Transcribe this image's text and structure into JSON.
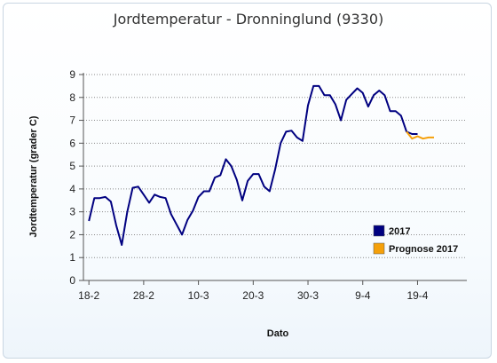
{
  "chart_data": {
    "type": "line",
    "title": "Jordtemperatur - Dronninglund (9330)",
    "xlabel": "Dato",
    "ylabel": "Jordtemperatur (grader C)",
    "ylim": [
      0,
      9
    ],
    "yticks": [
      "0",
      "1",
      "2",
      "3",
      "4",
      "5",
      "6",
      "7",
      "8",
      "9"
    ],
    "xticks": [
      "18-2",
      "28-2",
      "10-3",
      "20-3",
      "30-3",
      "9-4",
      "19-4"
    ],
    "grid": "horizontal dotted",
    "legend_position": "bottom-right",
    "series": [
      {
        "name": "2017",
        "color": "#000080",
        "x": [
          0,
          1,
          2,
          3,
          4,
          5,
          6,
          7,
          8,
          9,
          10,
          11,
          12,
          13,
          14,
          15,
          16,
          17,
          18,
          19,
          20,
          21,
          22,
          23,
          24,
          25,
          26,
          27,
          28,
          29,
          30,
          31,
          32,
          33,
          34,
          35,
          36,
          37,
          38,
          39,
          40,
          41,
          42,
          43,
          44,
          45,
          46,
          47,
          48,
          49,
          50,
          51,
          52,
          53,
          54,
          55,
          56,
          57,
          58,
          59,
          60
        ],
        "values": [
          2.6,
          3.6,
          3.6,
          3.65,
          3.45,
          2.4,
          1.55,
          3.0,
          4.05,
          4.1,
          3.75,
          3.4,
          3.75,
          3.65,
          3.6,
          2.9,
          2.45,
          2.0,
          2.65,
          3.05,
          3.65,
          3.9,
          3.9,
          4.5,
          4.6,
          5.3,
          5.0,
          4.4,
          3.5,
          4.35,
          4.65,
          4.65,
          4.1,
          3.9,
          4.85,
          6.0,
          6.5,
          6.55,
          6.25,
          6.1,
          7.65,
          8.5,
          8.5,
          8.1,
          8.1,
          7.7,
          7.0,
          7.9,
          8.15,
          8.4,
          8.2,
          7.6,
          8.1,
          8.3,
          8.1,
          7.4,
          7.4,
          7.2,
          6.5,
          6.4,
          6.4
        ]
      },
      {
        "name": "Prognose 2017",
        "color": "#f5a00a",
        "x": [
          58,
          59,
          60,
          61,
          62,
          63
        ],
        "values": [
          6.5,
          6.2,
          6.3,
          6.2,
          6.25,
          6.25
        ]
      }
    ]
  }
}
